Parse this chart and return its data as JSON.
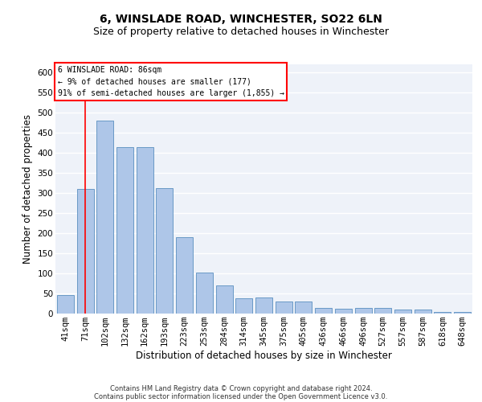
{
  "title1": "6, WINSLADE ROAD, WINCHESTER, SO22 6LN",
  "title2": "Size of property relative to detached houses in Winchester",
  "xlabel": "Distribution of detached houses by size in Winchester",
  "ylabel": "Number of detached properties",
  "categories": [
    "41sqm",
    "71sqm",
    "102sqm",
    "132sqm",
    "162sqm",
    "193sqm",
    "223sqm",
    "253sqm",
    "284sqm",
    "314sqm",
    "345sqm",
    "375sqm",
    "405sqm",
    "436sqm",
    "466sqm",
    "496sqm",
    "527sqm",
    "557sqm",
    "587sqm",
    "618sqm",
    "648sqm"
  ],
  "values": [
    46,
    311,
    480,
    415,
    415,
    313,
    190,
    102,
    70,
    38,
    40,
    30,
    30,
    14,
    13,
    15,
    15,
    10,
    10,
    5,
    5
  ],
  "bar_color": "#aec6e8",
  "bar_edge_color": "#5a8fc0",
  "annotation_box_text": "6 WINSLADE ROAD: 86sqm\n← 9% of detached houses are smaller (177)\n91% of semi-detached houses are larger (1,855) →",
  "footer1": "Contains HM Land Registry data © Crown copyright and database right 2024.",
  "footer2": "Contains public sector information licensed under the Open Government Licence v3.0.",
  "ylim": [
    0,
    620
  ],
  "yticks": [
    0,
    50,
    100,
    150,
    200,
    250,
    300,
    350,
    400,
    450,
    500,
    550,
    600
  ],
  "bg_color": "#eef2f9",
  "grid_color": "#ffffff",
  "title1_fontsize": 10,
  "title2_fontsize": 9,
  "xlabel_fontsize": 8.5,
  "ylabel_fontsize": 8.5,
  "tick_fontsize": 7.5,
  "red_line_x": 1.0,
  "ann_fontsize": 7.0
}
